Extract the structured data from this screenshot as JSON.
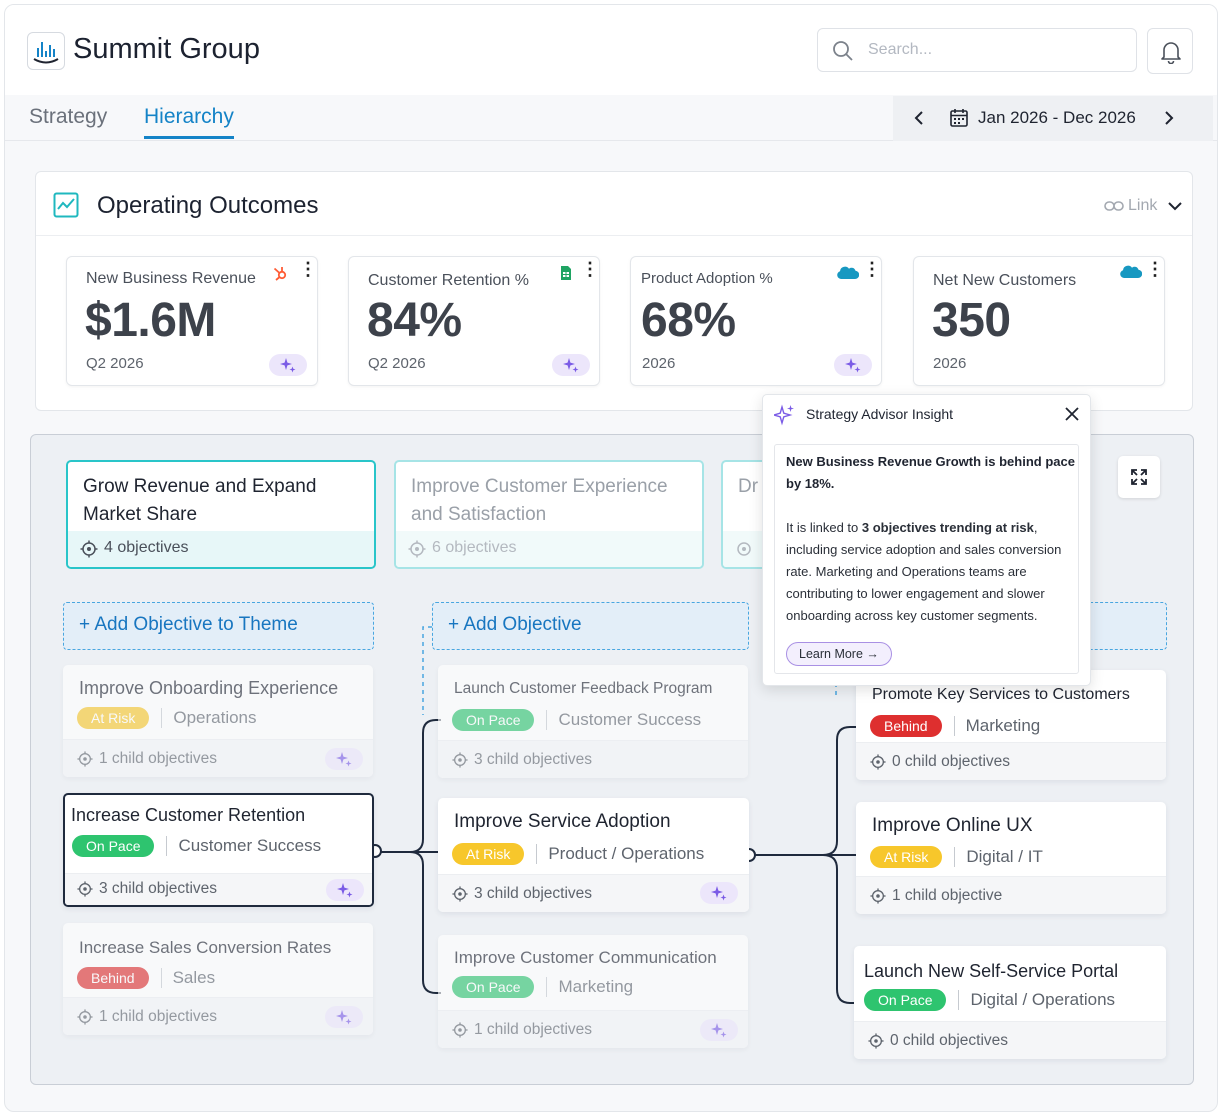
{
  "header": {
    "app_title": "Summit Group",
    "search_placeholder": "Search..."
  },
  "tabs": [
    {
      "label": "Strategy"
    },
    {
      "label": "Hierarchy",
      "active": true
    }
  ],
  "date_range": "Jan 2026 - Dec 2026",
  "outcomes": {
    "title": "Operating Outcomes",
    "link_label": "Link",
    "metrics": [
      {
        "label": "New Business Revenue",
        "value": "$1.6M",
        "period": "Q2 2026",
        "source_icon": "hubspot-icon"
      },
      {
        "label": "Customer Retention %",
        "value": "84%",
        "period": "Q2 2026",
        "source_icon": "google-sheets-icon"
      },
      {
        "label": "Product Adoption %",
        "value": "68%",
        "period": "2026",
        "source_icon": "salesforce-icon"
      },
      {
        "label": "Net New Customers",
        "value": "350",
        "period": "2026",
        "source_icon": "salesforce-icon"
      }
    ]
  },
  "themes": [
    {
      "title": "Grow Revenue and Expand Market Share",
      "count": "4 objectives"
    },
    {
      "title": "Improve Customer Experience and Satisfaction",
      "count": "6 objectives"
    },
    {
      "title": "Dr"
    }
  ],
  "add_objective_to_theme": "+ Add Objective to Theme",
  "add_objective": "+ Add Objective",
  "column1": [
    {
      "title": "Improve Onboarding Experience",
      "status": "At Risk",
      "dept": "Operations",
      "children": "1 child objectives"
    },
    {
      "title": "Increase Customer Retention",
      "status": "On Pace",
      "dept": "Customer Success",
      "children": "3 child objectives"
    },
    {
      "title": "Increase Sales Conversion Rates",
      "status": "Behind",
      "dept": "Sales",
      "children": "1 child objectives"
    }
  ],
  "column2": [
    {
      "title": "Launch Customer Feedback Program",
      "status": "On Pace",
      "dept": "Customer Success",
      "children": "3 child objectives"
    },
    {
      "title": "Improve Service Adoption",
      "status": "At Risk",
      "dept": "Product / Operations",
      "children": "3 child objectives"
    },
    {
      "title": "Improve Customer Communication",
      "status": "On Pace",
      "dept": "Marketing",
      "children": "1 child objectives"
    }
  ],
  "column3": [
    {
      "title": "Promote Key Services to Customers",
      "status": "Behind",
      "dept": "Marketing",
      "children": "0 child objectives"
    },
    {
      "title": "Improve Online UX",
      "status": "At Risk",
      "dept": "Digital / IT",
      "children": "1 child objective"
    },
    {
      "title": "Launch New Self-Service Portal",
      "status": "On Pace",
      "dept": "Digital / Operations",
      "children": "0 child objectives"
    }
  ],
  "insight": {
    "title": "Strategy Advisor Insight",
    "headline": "New Business Revenue Growth is behind pace by 18%.",
    "text_pre": "It is linked to ",
    "text_bold": "3 objectives trending at risk",
    "text_post": ", including service adoption and sales conversion rate. Marketing and Operations teams are contributing to lower engagement and slower onboarding across key customer segments.",
    "button": "Learn More"
  },
  "colors": {
    "accent": "#1483c7",
    "teal": "#29c5c9",
    "on_pace": "#2ec46f",
    "at_risk": "#f7c72b",
    "behind": "#de2f2f",
    "ai_purple": "#7b5ce6"
  }
}
